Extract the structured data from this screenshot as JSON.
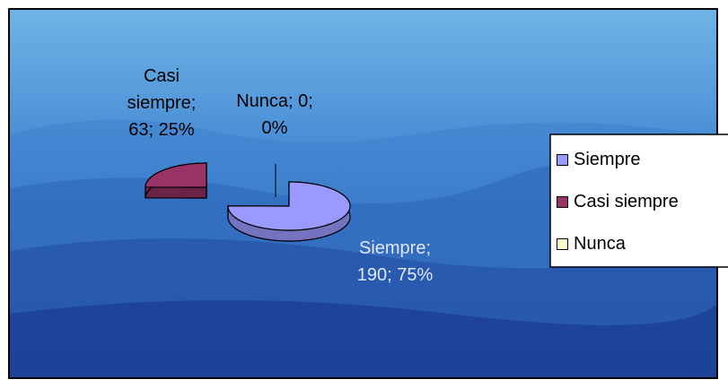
{
  "chart_data": {
    "type": "pie",
    "categories": [
      "Siempre",
      "Casi siempre",
      "Nunca"
    ],
    "values": [
      190,
      63,
      0
    ],
    "value_labels": [
      "Siempre; 190; 75%",
      "Casi siempre; 63; 25%",
      "Nunca; 0; 0%"
    ],
    "colors": [
      "#9999ff",
      "#993366",
      "#ffffcc"
    ],
    "legend": "right"
  }
}
